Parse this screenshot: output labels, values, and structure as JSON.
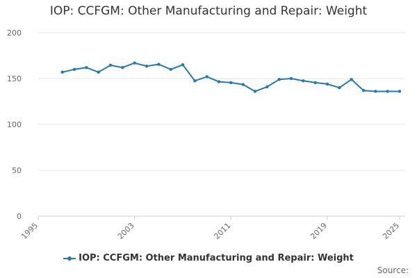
{
  "page": {
    "title": "IOP: CCFGM: Other Manufacturing and Repair: Weight",
    "source": "Source:"
  },
  "colors": {
    "series": "#1f7ab4",
    "grid": "#e6e6e6",
    "axis": "#cccccc"
  },
  "chart_data": {
    "type": "line",
    "title": "IOP: CCFGM: Other Manufacturing and Repair: Weight",
    "xlabel": "",
    "ylabel": "",
    "xlim": [
      1995,
      2025
    ],
    "ylim": [
      0,
      200
    ],
    "yticks": [
      0,
      50,
      100,
      150,
      200
    ],
    "xticks": [
      1995,
      2003,
      2011,
      2019,
      2025
    ],
    "grid": true,
    "legend": "bottom-center",
    "series": [
      {
        "name": "IOP: CCFGM: Other Manufacturing and Repair: Weight",
        "x": [
          1997,
          1998,
          1999,
          2000,
          2001,
          2002,
          2003,
          2004,
          2005,
          2006,
          2007,
          2008,
          2009,
          2010,
          2011,
          2012,
          2013,
          2014,
          2015,
          2016,
          2017,
          2018,
          2019,
          2020,
          2021,
          2022,
          2023,
          2024,
          2025
        ],
        "values": [
          157,
          160,
          162,
          157,
          164.5,
          162,
          167,
          163.5,
          165.5,
          160,
          165,
          147.5,
          152,
          146.5,
          145.5,
          143.5,
          136,
          141,
          149,
          150,
          147.5,
          145.5,
          144,
          140,
          149,
          137,
          136,
          136,
          136
        ]
      }
    ]
  }
}
